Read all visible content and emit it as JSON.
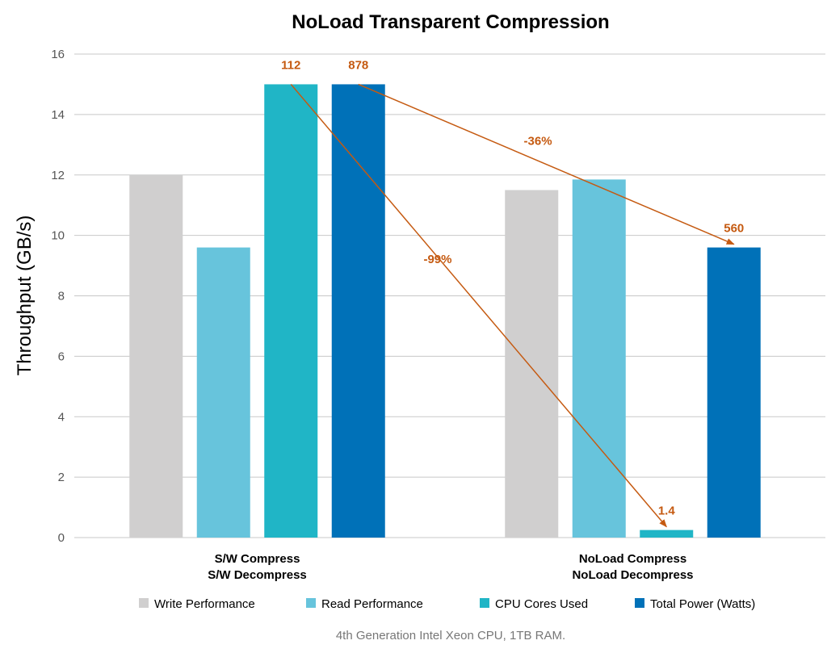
{
  "chart_data": {
    "type": "bar",
    "title": "NoLoad Transparent Compression",
    "ylabel": "Throughput (GB/s)",
    "xlabel": "",
    "ylim": [
      0,
      16
    ],
    "yticks": [
      0,
      2,
      4,
      6,
      8,
      10,
      12,
      14,
      16
    ],
    "grid": true,
    "legend_position": "bottom",
    "categories": [
      [
        "S/W Compress",
        "S/W Decompress"
      ],
      [
        "NoLoad Compress",
        "NoLoad Decompress"
      ]
    ],
    "series": [
      {
        "name": "Write Performance",
        "color": "#d0cfcf",
        "values": [
          12.0,
          11.5
        ]
      },
      {
        "name": "Read Performance",
        "color": "#67c4dc",
        "values": [
          9.6,
          11.85
        ]
      },
      {
        "name": "CPU Cores Used",
        "color": "#20b5c6",
        "values": [
          15.0,
          0.25
        ]
      },
      {
        "name": "Total Power (Watts)",
        "color": "#0071b8",
        "values": [
          15.0,
          9.6
        ]
      }
    ],
    "bar_labels": [
      {
        "series": 2,
        "category": 0,
        "text": "112"
      },
      {
        "series": 3,
        "category": 0,
        "text": "878"
      },
      {
        "series": 2,
        "category": 1,
        "text": "1.4"
      },
      {
        "series": 3,
        "category": 1,
        "text": "560"
      }
    ],
    "annotations": [
      {
        "from": {
          "series": 2,
          "category": 0
        },
        "to": {
          "series": 2,
          "category": 1
        },
        "text": "-99%"
      },
      {
        "from": {
          "series": 3,
          "category": 0
        },
        "to": {
          "series": 3,
          "category": 1
        },
        "text": "-36%"
      }
    ],
    "annotation_color": "#c55a11",
    "footnote": "4th Generation Intel Xeon CPU, 1TB RAM."
  }
}
